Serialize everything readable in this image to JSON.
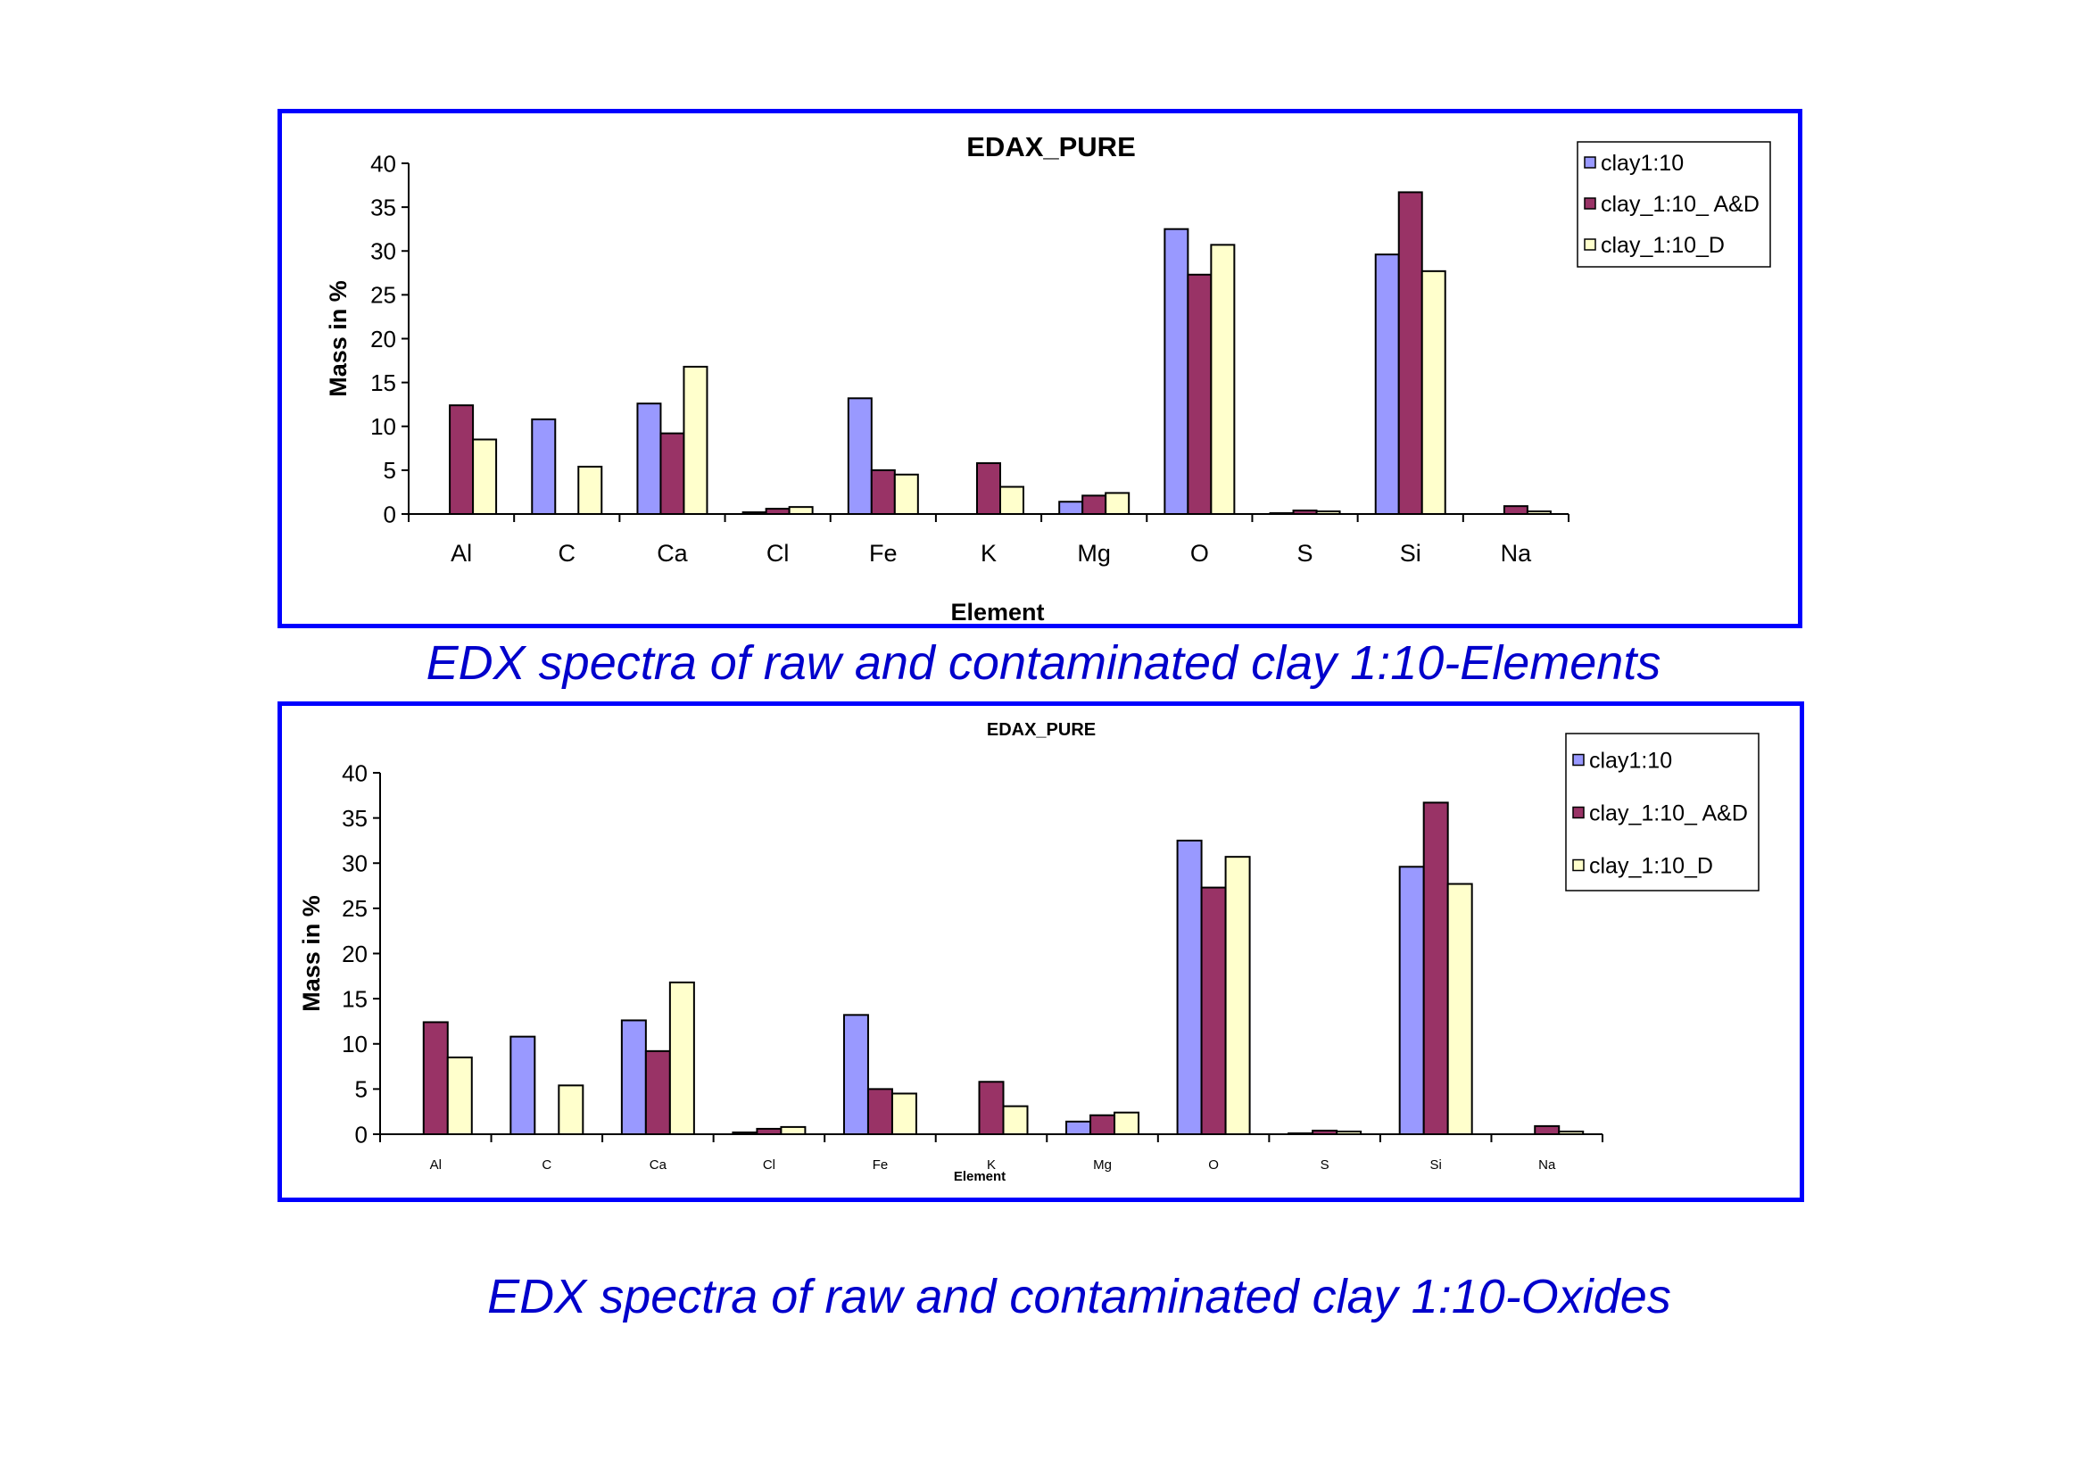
{
  "charts": [
    {
      "caption": "EDX spectra of raw and contaminated clay 1:10-Elements",
      "chart_data": {
        "type": "bar",
        "title": "EDAX_PURE",
        "xlabel": "Element",
        "ylabel": "Mass in %",
        "ylim": [
          0,
          40
        ],
        "yticks": [
          "0",
          "5",
          "10",
          "15",
          "20",
          "25",
          "30",
          "35",
          "40"
        ],
        "categories": [
          "Al",
          "C",
          "Ca",
          "Cl",
          "Fe",
          "K",
          "Mg",
          "O",
          "S",
          "Si",
          "Na"
        ],
        "series": [
          {
            "name": "clay1:10",
            "color": "#9999ff",
            "values": [
              0,
              10.8,
              12.6,
              0.2,
              13.2,
              0,
              1.4,
              32.5,
              0.1,
              29.6,
              0
            ]
          },
          {
            "name": "clay_1:10_ A&D",
            "color": "#993366",
            "values": [
              12.4,
              0,
              9.2,
              0.6,
              5.0,
              5.8,
              2.1,
              27.3,
              0.4,
              36.7,
              0.9
            ]
          },
          {
            "name": "clay_1:10_D",
            "color": "#ffffcc",
            "values": [
              8.5,
              5.4,
              16.8,
              0.8,
              4.5,
              3.1,
              2.4,
              30.7,
              0.3,
              27.7,
              0.3
            ]
          }
        ],
        "legend": "top-right",
        "grid": false
      }
    },
    {
      "caption": "EDX spectra of raw and contaminated clay 1:10-Oxides",
      "chart_data": {
        "type": "bar",
        "title": "EDAX_PURE",
        "xlabel": "Element",
        "ylabel": "Mass in %",
        "ylim": [
          0,
          40
        ],
        "yticks": [
          "0",
          "5",
          "10",
          "15",
          "20",
          "25",
          "30",
          "35",
          "40"
        ],
        "categories": [
          "Al",
          "C",
          "Ca",
          "Cl",
          "Fe",
          "K",
          "Mg",
          "O",
          "S",
          "Si",
          "Na"
        ],
        "series": [
          {
            "name": "clay1:10",
            "color": "#9999ff",
            "values": [
              0,
              10.8,
              12.6,
              0.2,
              13.2,
              0,
              1.4,
              32.5,
              0.1,
              29.6,
              0
            ]
          },
          {
            "name": "clay_1:10_ A&D",
            "color": "#993366",
            "values": [
              12.4,
              0,
              9.2,
              0.6,
              5.0,
              5.8,
              2.1,
              27.3,
              0.4,
              36.7,
              0.9
            ]
          },
          {
            "name": "clay_1:10_D",
            "color": "#ffffcc",
            "values": [
              8.5,
              5.4,
              16.8,
              0.8,
              4.5,
              3.1,
              2.4,
              30.7,
              0.3,
              27.7,
              0.3
            ]
          }
        ],
        "legend": "top-right",
        "grid": false
      }
    }
  ]
}
